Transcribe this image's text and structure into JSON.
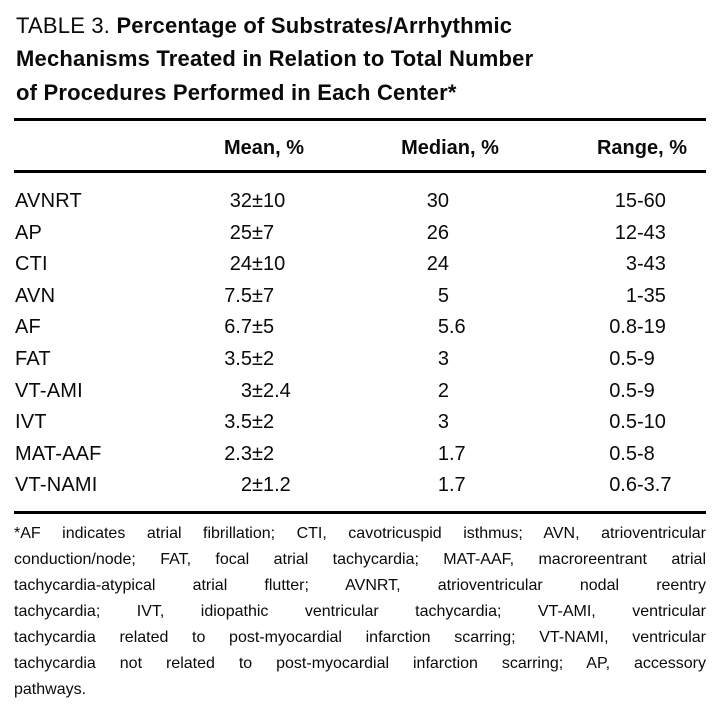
{
  "title": {
    "table_label": "TABLE 3. ",
    "bold_line1": "Percentage of Substrates/Arrhythmic",
    "bold_line2": "Mechanisms Treated in Relation to Total Number",
    "bold_line3": "of Procedures Performed in Each Center*"
  },
  "table": {
    "columns": [
      "Mean, %",
      "Median, %",
      "Range, %"
    ],
    "rows": [
      {
        "label": "AVNRT",
        "mean": "32±10",
        "median": "30",
        "range": "15-60"
      },
      {
        "label": "AP",
        "mean": "25±7",
        "median": "26",
        "range": "12-43"
      },
      {
        "label": "CTI",
        "mean": "24±10",
        "median": "24",
        "range": "3-43"
      },
      {
        "label": "AVN",
        "mean": "7.5±7",
        "median": "5",
        "range": "1-35"
      },
      {
        "label": "AF",
        "mean": "6.7±5",
        "median": "5.6",
        "range": "0.8-19"
      },
      {
        "label": "FAT",
        "mean": "3.5±2",
        "median": "3",
        "range": "0.5-9"
      },
      {
        "label": "VT-AMI",
        "mean": "3±2.4",
        "median": "2",
        "range": "0.5-9"
      },
      {
        "label": "IVT",
        "mean": "3.5±2",
        "median": "3",
        "range": "0.5-10"
      },
      {
        "label": "MAT-AAF",
        "mean": "2.3±2",
        "median": "1.7",
        "range": "0.5-8"
      },
      {
        "label": "VT-NAMI",
        "mean": "2±1.2",
        "median": "1.7",
        "range": "0.6-3.7"
      }
    ]
  },
  "footnote": {
    "lines": [
      "*AF indicates atrial fibrillation; CTI, cavotricuspid isthmus; AVN, atrioventricular",
      "conduction/node; FAT, focal atrial tachycardia; MAT-AAF, macroreentrant atrial",
      "tachycardia-atypical atrial flutter; AVNRT, atrioventricular nodal reentry",
      "tachycardia; IVT, idiopathic ventricular tachycardia; VT-AMI, ventricular",
      "tachycardia related to post-myocardial infarction scarring; VT-NAMI, ventricular",
      "tachycardia not related to post-myocardial infarction scarring; AP, accessory",
      "pathways."
    ]
  },
  "colors": {
    "text": "#0a0a0a",
    "background": "#ffffff",
    "rule": "#000000"
  }
}
